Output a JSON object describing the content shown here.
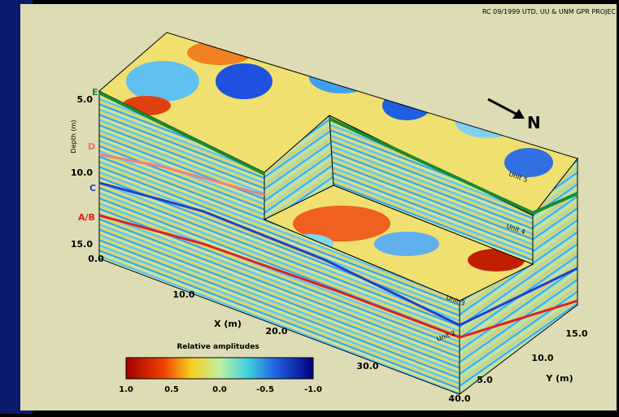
{
  "credit": "RC 09/1999 UTD, UU & UNM GPR PROJEC",
  "north": "N",
  "depth_axis": {
    "title": "Depth (m)",
    "ticks": [
      "5.0",
      "10.0",
      "15.0"
    ]
  },
  "horizons": [
    "E",
    "D",
    "C",
    "A/B"
  ],
  "x_axis": {
    "title": "X (m)",
    "ticks": [
      "0.0",
      "10.0",
      "20.0",
      "30.0",
      "40.0"
    ]
  },
  "y_axis": {
    "title": "Y (m)",
    "ticks": [
      "5.0",
      "10.0",
      "15.0"
    ]
  },
  "units": [
    "Unit 5",
    "Unit 4",
    "Unit 3",
    "Unit 2"
  ],
  "colorbar": {
    "title": "Relative amplitudes",
    "ticks": [
      "1.0",
      "0.5",
      "0.0",
      "-0.5",
      "-1.0"
    ]
  }
}
